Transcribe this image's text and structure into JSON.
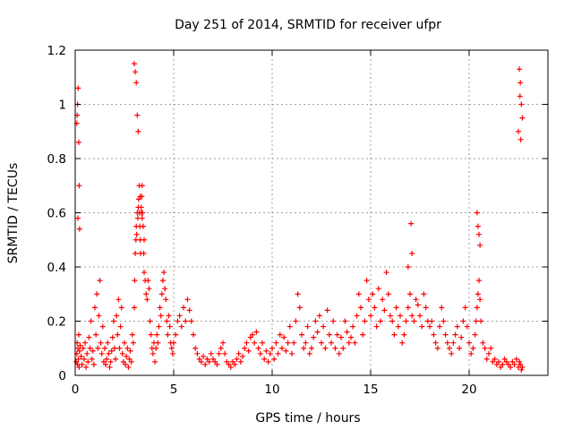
{
  "chart_data": {
    "type": "scatter",
    "title": "Day 251 of 2014, SRMTID for receiver ufpr",
    "xlabel": "GPS time / hours",
    "ylabel": "SRMTID / TECUs",
    "xlim": [
      0,
      24
    ],
    "ylim": [
      0,
      1.2
    ],
    "x_ticks": [
      0,
      5,
      10,
      15,
      20
    ],
    "x_tick_labels": [
      "0",
      "5",
      "10",
      "15",
      "20"
    ],
    "y_ticks": [
      0,
      0.2,
      0.4,
      0.6,
      0.8,
      1,
      1.2
    ],
    "y_tick_labels": [
      "0",
      "0.2",
      "0.4",
      "0.6",
      "0.8",
      "1",
      "1.2"
    ],
    "grid": true,
    "marker": "+",
    "series_color": "#ff0000",
    "grid_color": "#a0a0a0",
    "series": [
      {
        "name": "SRMTID",
        "x": [
          0.05,
          0.08,
          0.1,
          0.12,
          0.14,
          0.16,
          0.18,
          0.2,
          0.22,
          0.25,
          0.3,
          0.35,
          0.4,
          0.45,
          0.5,
          0.55,
          0.6,
          0.65,
          0.7,
          0.75,
          0.8,
          0.85,
          0.9,
          0.95,
          1.0,
          1.05,
          1.1,
          1.15,
          1.2,
          1.25,
          1.3,
          1.35,
          1.4,
          1.45,
          1.5,
          1.55,
          1.6,
          1.65,
          1.7,
          1.75,
          1.8,
          1.85,
          1.9,
          1.95,
          2.0,
          2.05,
          2.1,
          2.15,
          2.2,
          2.25,
          2.3,
          2.35,
          2.4,
          2.45,
          2.5,
          2.55,
          2.6,
          2.65,
          2.7,
          2.75,
          2.8,
          2.85,
          2.9,
          2.95,
          3.0,
          3.02,
          3.05,
          3.08,
          3.1,
          3.12,
          3.15,
          3.18,
          3.2,
          3.22,
          3.25,
          3.28,
          3.3,
          3.32,
          3.35,
          3.38,
          3.4,
          3.42,
          3.45,
          3.48,
          3.5,
          3.55,
          3.6,
          3.65,
          3.7,
          3.75,
          3.8,
          3.85,
          3.9,
          3.95,
          4.0,
          4.05,
          4.1,
          4.15,
          4.2,
          4.25,
          4.3,
          4.35,
          4.4,
          4.45,
          4.5,
          4.55,
          4.6,
          4.65,
          4.7,
          4.75,
          4.8,
          4.85,
          4.9,
          4.95,
          5.0,
          5.1,
          5.2,
          5.3,
          5.4,
          5.5,
          5.6,
          5.7,
          5.8,
          5.9,
          6.0,
          6.1,
          6.2,
          6.3,
          6.4,
          6.5,
          6.6,
          6.7,
          6.8,
          6.9,
          7.0,
          7.1,
          7.2,
          7.3,
          7.4,
          7.5,
          7.6,
          7.7,
          7.8,
          7.9,
          8.0,
          8.1,
          8.2,
          8.3,
          8.4,
          8.5,
          8.6,
          8.7,
          8.8,
          8.9,
          9.0,
          9.1,
          9.2,
          9.3,
          9.4,
          9.5,
          9.6,
          9.7,
          9.8,
          9.9,
          10.0,
          10.1,
          10.2,
          10.3,
          10.4,
          10.5,
          10.6,
          10.7,
          10.8,
          10.9,
          11.0,
          11.1,
          11.2,
          11.3,
          11.4,
          11.5,
          11.6,
          11.7,
          11.8,
          11.9,
          12.0,
          12.1,
          12.2,
          12.3,
          12.4,
          12.5,
          12.6,
          12.7,
          12.8,
          12.9,
          13.0,
          13.1,
          13.2,
          13.3,
          13.4,
          13.5,
          13.6,
          13.7,
          13.8,
          13.9,
          14.0,
          14.1,
          14.2,
          14.3,
          14.4,
          14.5,
          14.6,
          14.7,
          14.8,
          14.9,
          15.0,
          15.1,
          15.2,
          15.3,
          15.4,
          15.5,
          15.6,
          15.7,
          15.8,
          15.9,
          16.0,
          16.1,
          16.2,
          16.3,
          16.4,
          16.5,
          16.6,
          16.7,
          16.8,
          16.9,
          17.0,
          17.1,
          17.2,
          17.3,
          17.4,
          17.5,
          17.6,
          17.7,
          17.8,
          17.9,
          18.0,
          18.1,
          18.2,
          18.3,
          18.4,
          18.5,
          18.6,
          18.7,
          18.8,
          18.9,
          19.0,
          19.1,
          19.2,
          19.3,
          19.4,
          19.5,
          19.6,
          19.7,
          19.8,
          19.9,
          20.0,
          20.1,
          20.2,
          20.3,
          20.35,
          20.4,
          20.45,
          20.5,
          20.55,
          20.6,
          20.7,
          20.8,
          20.9,
          21.0,
          21.1,
          21.2,
          21.3,
          21.4,
          21.5,
          21.6,
          21.7,
          21.8,
          21.9,
          22.0,
          22.1,
          22.2,
          22.3,
          22.4,
          22.5,
          22.55,
          22.6,
          22.65,
          22.7,
          0.1,
          0.12,
          0.15,
          0.08,
          0.18,
          0.2,
          0.14,
          0.22,
          3.0,
          3.05,
          3.1,
          3.15,
          3.2,
          3.25,
          3.3,
          3.35,
          3.4,
          3.45,
          3.5,
          17.05,
          17.1,
          16.9,
          20.4,
          20.45,
          20.5,
          20.55,
          22.55,
          22.6,
          22.65,
          22.7,
          22.5,
          22.62,
          22.58
        ],
        "y": [
          0.05,
          0.08,
          0.12,
          0.04,
          0.1,
          0.06,
          0.15,
          0.03,
          0.09,
          0.11,
          0.07,
          0.04,
          0.1,
          0.06,
          0.12,
          0.03,
          0.08,
          0.05,
          0.14,
          0.1,
          0.2,
          0.06,
          0.09,
          0.04,
          0.25,
          0.15,
          0.3,
          0.1,
          0.22,
          0.35,
          0.12,
          0.08,
          0.18,
          0.05,
          0.1,
          0.04,
          0.06,
          0.12,
          0.08,
          0.03,
          0.05,
          0.09,
          0.14,
          0.2,
          0.1,
          0.06,
          0.22,
          0.15,
          0.28,
          0.1,
          0.18,
          0.25,
          0.08,
          0.05,
          0.12,
          0.04,
          0.07,
          0.1,
          0.03,
          0.06,
          0.09,
          0.05,
          0.15,
          0.12,
          0.25,
          0.35,
          0.45,
          0.5,
          0.55,
          0.52,
          0.6,
          0.58,
          0.62,
          0.65,
          0.6,
          0.55,
          0.5,
          0.45,
          0.62,
          0.66,
          0.7,
          0.6,
          0.55,
          0.45,
          0.38,
          0.35,
          0.3,
          0.28,
          0.35,
          0.32,
          0.2,
          0.15,
          0.1,
          0.08,
          0.12,
          0.05,
          0.1,
          0.15,
          0.12,
          0.18,
          0.25,
          0.22,
          0.3,
          0.35,
          0.38,
          0.32,
          0.28,
          0.2,
          0.15,
          0.22,
          0.18,
          0.12,
          0.1,
          0.08,
          0.12,
          0.15,
          0.2,
          0.22,
          0.18,
          0.25,
          0.2,
          0.28,
          0.24,
          0.2,
          0.15,
          0.1,
          0.08,
          0.06,
          0.05,
          0.07,
          0.04,
          0.06,
          0.05,
          0.08,
          0.06,
          0.05,
          0.04,
          0.08,
          0.1,
          0.12,
          0.08,
          0.05,
          0.04,
          0.03,
          0.05,
          0.04,
          0.06,
          0.08,
          0.05,
          0.07,
          0.1,
          0.12,
          0.09,
          0.14,
          0.15,
          0.12,
          0.16,
          0.1,
          0.08,
          0.12,
          0.06,
          0.09,
          0.05,
          0.08,
          0.1,
          0.06,
          0.12,
          0.08,
          0.15,
          0.1,
          0.14,
          0.09,
          0.12,
          0.18,
          0.08,
          0.12,
          0.2,
          0.3,
          0.25,
          0.15,
          0.1,
          0.12,
          0.18,
          0.08,
          0.1,
          0.14,
          0.2,
          0.16,
          0.22,
          0.12,
          0.18,
          0.1,
          0.24,
          0.15,
          0.12,
          0.2,
          0.1,
          0.15,
          0.08,
          0.14,
          0.1,
          0.2,
          0.16,
          0.12,
          0.14,
          0.18,
          0.12,
          0.22,
          0.3,
          0.25,
          0.15,
          0.2,
          0.35,
          0.28,
          0.22,
          0.3,
          0.25,
          0.18,
          0.32,
          0.2,
          0.28,
          0.24,
          0.38,
          0.3,
          0.22,
          0.2,
          0.15,
          0.25,
          0.18,
          0.22,
          0.12,
          0.15,
          0.2,
          0.25,
          0.3,
          0.22,
          0.2,
          0.28,
          0.26,
          0.22,
          0.18,
          0.3,
          0.25,
          0.2,
          0.18,
          0.2,
          0.15,
          0.12,
          0.1,
          0.18,
          0.25,
          0.2,
          0.15,
          0.12,
          0.1,
          0.08,
          0.12,
          0.15,
          0.18,
          0.1,
          0.14,
          0.2,
          0.25,
          0.18,
          0.12,
          0.08,
          0.1,
          0.15,
          0.2,
          0.25,
          0.3,
          0.35,
          0.28,
          0.2,
          0.12,
          0.1,
          0.06,
          0.08,
          0.1,
          0.05,
          0.06,
          0.04,
          0.05,
          0.03,
          0.04,
          0.06,
          0.05,
          0.04,
          0.03,
          0.05,
          0.04,
          0.06,
          0.03,
          0.05,
          0.04,
          0.02,
          0.03,
          0.96,
          1.0,
          1.06,
          0.93,
          0.86,
          0.7,
          0.58,
          0.54,
          1.15,
          1.12,
          1.08,
          0.96,
          0.9,
          0.7,
          0.66,
          0.6,
          0.58,
          0.55,
          0.5,
          0.56,
          0.45,
          0.4,
          0.6,
          0.55,
          0.52,
          0.48,
          1.13,
          1.08,
          1.0,
          0.95,
          0.9,
          0.87,
          1.03
        ]
      }
    ]
  }
}
